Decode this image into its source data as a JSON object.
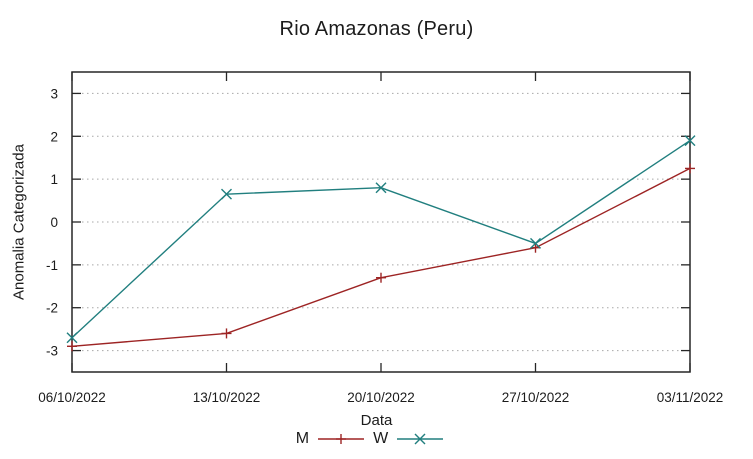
{
  "chart_data": {
    "type": "line",
    "title": "Rio Amazonas (Peru)",
    "xlabel": "Data",
    "ylabel": "Anomalia Categorizada",
    "categories": [
      "06/10/2022",
      "13/10/2022",
      "20/10/2022",
      "27/10/2022",
      "03/11/2022"
    ],
    "series": [
      {
        "name": "M",
        "color": "#9d2424",
        "marker": "plus",
        "values": [
          -2.9,
          -2.6,
          -1.3,
          -0.6,
          1.25
        ]
      },
      {
        "name": "W",
        "color": "#217f7f",
        "marker": "cross",
        "values": [
          -2.7,
          0.65,
          0.8,
          -0.5,
          1.9
        ]
      }
    ],
    "yticks": [
      -3,
      -2,
      -1,
      0,
      1,
      2,
      3
    ],
    "ylim": [
      -3.5,
      3.5
    ],
    "grid": "horizontal-dotted",
    "legend_position": "bottom-center",
    "colors": {
      "axis": "#262626",
      "gridline": "#a8a8a8",
      "text": "#1c1c1c"
    }
  }
}
